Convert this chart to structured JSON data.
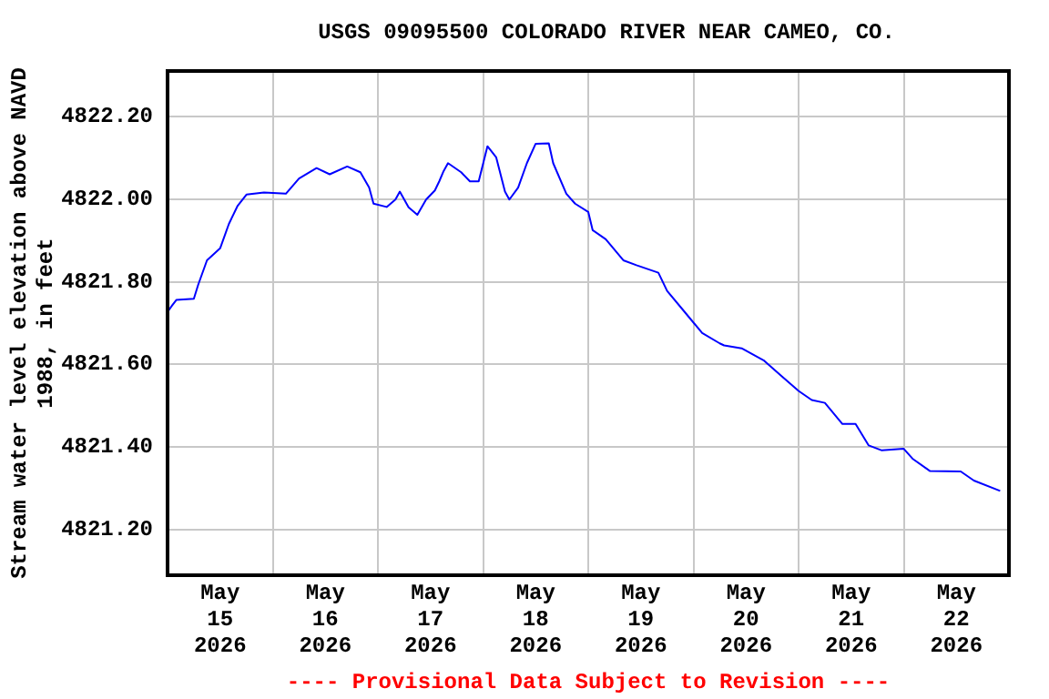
{
  "chart_data": {
    "type": "line",
    "title": "USGS 09095500 COLORADO RIVER NEAR CAMEO, CO.",
    "ylabel": "Stream water level elevation above NAVD\n1988, in feet",
    "annotations": [
      "---- Provisional Data Subject to Revision ----"
    ],
    "series": [
      {
        "color": "#0000ff",
        "x": [
          "2026-05-15T00:00",
          "2026-05-15T01:00",
          "2026-05-15T02:00",
          "2026-05-15T06:00",
          "2026-05-15T07:00",
          "2026-05-15T09:00",
          "2026-05-15T12:00",
          "2026-05-15T14:00",
          "2026-05-15T16:00",
          "2026-05-15T18:00",
          "2026-05-15T22:00",
          "2026-05-16T03:00",
          "2026-05-16T06:00",
          "2026-05-16T10:00",
          "2026-05-16T13:00",
          "2026-05-16T17:00",
          "2026-05-16T20:00",
          "2026-05-16T22:00",
          "2026-05-16T23:00",
          "2026-05-17T02:00",
          "2026-05-17T04:00",
          "2026-05-17T05:00",
          "2026-05-17T07:00",
          "2026-05-17T09:00",
          "2026-05-17T11:00",
          "2026-05-17T13:00",
          "2026-05-17T14:00",
          "2026-05-17T15:00",
          "2026-05-17T16:00",
          "2026-05-17T19:00",
          "2026-05-17T21:00",
          "2026-05-17T23:00",
          "2026-05-18T01:00",
          "2026-05-18T03:00",
          "2026-05-18T05:00",
          "2026-05-18T06:00",
          "2026-05-18T08:00",
          "2026-05-18T10:00",
          "2026-05-18T12:00",
          "2026-05-18T15:00",
          "2026-05-18T16:00",
          "2026-05-18T19:00",
          "2026-05-18T21:00",
          "2026-05-19T00:00",
          "2026-05-19T01:00",
          "2026-05-19T04:00",
          "2026-05-19T08:00",
          "2026-05-19T11:00",
          "2026-05-19T16:00",
          "2026-05-19T18:00",
          "2026-05-19T22:00",
          "2026-05-20T02:00",
          "2026-05-20T06:00",
          "2026-05-20T07:00",
          "2026-05-20T11:00",
          "2026-05-20T16:00",
          "2026-05-20T20:00",
          "2026-05-21T00:00",
          "2026-05-21T03:00",
          "2026-05-21T06:00",
          "2026-05-21T10:00",
          "2026-05-21T13:00",
          "2026-05-21T16:00",
          "2026-05-21T19:00",
          "2026-05-22T00:00",
          "2026-05-22T02:00",
          "2026-05-22T06:00",
          "2026-05-22T13:00",
          "2026-05-22T16:00",
          "2026-05-22T22:00"
        ],
        "values": [
          4821.727,
          4821.742,
          4821.756,
          4821.759,
          4821.793,
          4821.852,
          4821.881,
          4821.94,
          4821.984,
          4822.011,
          4822.016,
          4822.013,
          4822.05,
          4822.075,
          4822.06,
          4822.079,
          4822.065,
          4822.028,
          4821.989,
          4821.981,
          4821.999,
          4822.018,
          4821.98,
          4821.962,
          4821.999,
          4822.021,
          4822.043,
          4822.068,
          4822.087,
          4822.065,
          4822.043,
          4822.043,
          4822.128,
          4822.101,
          4822.018,
          4821.999,
          4822.028,
          4822.087,
          4822.134,
          4822.135,
          4822.087,
          4822.013,
          4821.989,
          4821.969,
          4821.925,
          4821.903,
          4821.852,
          4821.84,
          4821.822,
          4821.778,
          4821.727,
          4821.676,
          4821.651,
          4821.646,
          4821.639,
          4821.61,
          4821.573,
          4821.536,
          4821.514,
          4821.507,
          4821.456,
          4821.456,
          4821.404,
          4821.392,
          4821.396,
          4821.372,
          4821.342,
          4821.341,
          4821.319,
          4821.294
        ]
      }
    ],
    "xlim": [
      "2026-05-15T00:00",
      "2026-05-23T00:00"
    ],
    "xticks": [
      {
        "value": "2026-05-15T12:00",
        "label": "May\n15\n2026"
      },
      {
        "value": "2026-05-16T00:00",
        "label": null
      },
      {
        "value": "2026-05-16T12:00",
        "label": "May\n16\n2026"
      },
      {
        "value": "2026-05-17T00:00",
        "label": null
      },
      {
        "value": "2026-05-17T12:00",
        "label": "May\n17\n2026"
      },
      {
        "value": "2026-05-18T00:00",
        "label": null
      },
      {
        "value": "2026-05-18T12:00",
        "label": "May\n18\n2026"
      },
      {
        "value": "2026-05-19T00:00",
        "label": null
      },
      {
        "value": "2026-05-19T12:00",
        "label": "May\n19\n2026"
      },
      {
        "value": "2026-05-20T00:00",
        "label": null
      },
      {
        "value": "2026-05-20T12:00",
        "label": "May\n20\n2026"
      },
      {
        "value": "2026-05-21T00:00",
        "label": null
      },
      {
        "value": "2026-05-21T12:00",
        "label": "May\n21\n2026"
      },
      {
        "value": "2026-05-22T00:00",
        "label": null
      },
      {
        "value": "2026-05-22T12:00",
        "label": "May\n22\n2026"
      }
    ],
    "ylim": [
      4821.09,
      4822.31
    ],
    "yticks": [
      {
        "value": 4821.2,
        "label": "4821.20"
      },
      {
        "value": 4821.4,
        "label": "4821.40"
      },
      {
        "value": 4821.6,
        "label": "4821.60"
      },
      {
        "value": 4821.8,
        "label": "4821.80"
      },
      {
        "value": 4822.0,
        "label": "4822.00"
      },
      {
        "value": 4822.2,
        "label": "4822.20"
      }
    ],
    "grid": true,
    "legend": false,
    "marker": "none",
    "line_style": "solid"
  }
}
